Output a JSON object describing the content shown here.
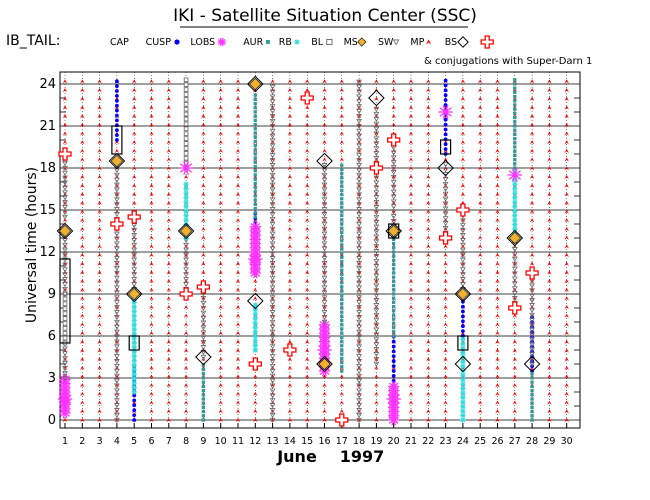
{
  "title": "IKI - Satellite Situation Center (SSC)",
  "satellite_label": "IB_TAIL:",
  "legend": [
    {
      "label": "CAP",
      "symbol": "",
      "color": "#000000"
    },
    {
      "label": "CUSP",
      "symbol": "dot",
      "color": "#0000ff"
    },
    {
      "label": "LOBS",
      "symbol": "star",
      "color": "#ff33ff"
    },
    {
      "label": "AUR",
      "symbol": "square-small",
      "color": "#339999"
    },
    {
      "label": "RB",
      "symbol": "asterisk",
      "color": "#33dddd"
    },
    {
      "label": "BL",
      "symbol": "square-open",
      "color": "#555555"
    },
    {
      "label": "MS",
      "symbol": "diamond-filled",
      "color": "#f0b030"
    },
    {
      "label": "SW",
      "symbol": "triangle-down",
      "color": "#666666"
    },
    {
      "label": "MP",
      "symbol": "arrow-up",
      "color": "#ff0000"
    },
    {
      "label": "BS",
      "symbol": "diamond-open",
      "color": "#000000"
    }
  ],
  "conjugation_note": "& conjugations with Super-Darn 1",
  "colors": {
    "cusp": "#0000ff",
    "lobs": "#ff33ff",
    "aur": "#339999",
    "rb": "#33dddd",
    "bl": "#666666",
    "ms": "#f0b030",
    "sw": "#666666",
    "mp": "#ff0000",
    "bs": "#000000",
    "conjugation": "#ff0000"
  },
  "chart_data": {
    "type": "scatter",
    "xlabel": "June",
    "year_label": "1997",
    "ylabel": "Universal time (hours)",
    "x_ticks": [
      1,
      2,
      3,
      4,
      5,
      6,
      7,
      8,
      9,
      10,
      11,
      12,
      13,
      14,
      15,
      16,
      17,
      18,
      19,
      20,
      21,
      22,
      23,
      24,
      25,
      26,
      27,
      28,
      29,
      30
    ],
    "y_ticks": [
      0,
      3,
      6,
      9,
      12,
      15,
      18,
      21,
      24
    ],
    "xlim": [
      1,
      30
    ],
    "ylim": [
      0,
      24
    ],
    "grid": true,
    "mp_days": [
      1,
      2,
      3,
      4,
      5,
      6,
      7,
      8,
      9,
      10,
      11,
      12,
      13,
      14,
      15,
      16,
      17,
      18,
      19,
      20,
      21,
      22,
      23,
      24,
      25,
      26,
      27,
      28,
      29,
      30
    ],
    "region_segments": [
      {
        "day": 1,
        "region": "LOBS",
        "from": 0.5,
        "to": 3
      },
      {
        "day": 1,
        "region": "SW",
        "from": 3,
        "to": 5.5
      },
      {
        "day": 1,
        "region": "BL",
        "from": 5.5,
        "to": 9
      },
      {
        "day": 1,
        "region": "SW",
        "from": 9,
        "to": 13.5
      },
      {
        "day": 1,
        "region": "SW",
        "from": 14.5,
        "to": 19
      },
      {
        "day": 4,
        "region": "CUSP",
        "from": 20,
        "to": 24.5
      },
      {
        "day": 4,
        "region": "SW",
        "from": 0,
        "to": 18.5
      },
      {
        "day": 5,
        "region": "CUSP",
        "from": 0,
        "to": 4
      },
      {
        "day": 5,
        "region": "RB",
        "from": 2,
        "to": 9
      },
      {
        "day": 5,
        "region": "SW",
        "from": 9,
        "to": 14.5
      },
      {
        "day": 8,
        "region": "SW",
        "from": 9,
        "to": 13
      },
      {
        "day": 8,
        "region": "RB",
        "from": 13,
        "to": 17
      },
      {
        "day": 8,
        "region": "BL",
        "from": 18,
        "to": 24.5
      },
      {
        "day": 9,
        "region": "AUR",
        "from": 0,
        "to": 4
      },
      {
        "day": 9,
        "region": "SW",
        "from": 4.5,
        "to": 9.5
      },
      {
        "day": 12,
        "region": "CUSP",
        "from": 13,
        "to": 15
      },
      {
        "day": 12,
        "region": "LOBS",
        "from": 10.5,
        "to": 14
      },
      {
        "day": 12,
        "region": "RB",
        "from": 5,
        "to": 8.5
      },
      {
        "day": 12,
        "region": "AUR",
        "from": 14.5,
        "to": 23.5
      },
      {
        "day": 13,
        "region": "SW",
        "from": 0,
        "to": 24
      },
      {
        "day": 16,
        "region": "LOBS",
        "from": 3.5,
        "to": 7
      },
      {
        "day": 16,
        "region": "SW",
        "from": 7,
        "to": 18.5
      },
      {
        "day": 17,
        "region": "AUR",
        "from": 3.5,
        "to": 18.5
      },
      {
        "day": 18,
        "region": "SW",
        "from": 0,
        "to": 24.5
      },
      {
        "day": 19,
        "region": "SW",
        "from": 4,
        "to": 22.5
      },
      {
        "day": 20,
        "region": "CUSP",
        "from": 0,
        "to": 6
      },
      {
        "day": 20,
        "region": "LOBS",
        "from": 0,
        "to": 2.5
      },
      {
        "day": 20,
        "region": "AUR",
        "from": 6,
        "to": 13.5
      },
      {
        "day": 20,
        "region": "SW",
        "from": 13.5,
        "to": 20
      },
      {
        "day": 23,
        "region": "CUSP",
        "from": 19,
        "to": 24.5
      },
      {
        "day": 23,
        "region": "SW",
        "from": 13,
        "to": 18.5
      },
      {
        "day": 24,
        "region": "CUSP",
        "from": 6,
        "to": 9
      },
      {
        "day": 24,
        "region": "RB",
        "from": 0,
        "to": 6
      },
      {
        "day": 24,
        "region": "SW",
        "from": 9,
        "to": 15
      },
      {
        "day": 27,
        "region": "SW",
        "from": 8,
        "to": 13
      },
      {
        "day": 27,
        "region": "RB",
        "from": 13,
        "to": 18
      },
      {
        "day": 27,
        "region": "AUR",
        "from": 18,
        "to": 24.5
      },
      {
        "day": 28,
        "region": "CUSP",
        "from": 3.5,
        "to": 7.5
      },
      {
        "day": 28,
        "region": "AUR",
        "from": 0,
        "to": 3.5
      },
      {
        "day": 28,
        "region": "SW",
        "from": 4,
        "to": 10
      }
    ],
    "bow_shock_points": [
      {
        "day": 1,
        "time": 13.5
      },
      {
        "day": 4,
        "time": 18.5
      },
      {
        "day": 5,
        "time": 9
      },
      {
        "day": 8,
        "time": 13.5
      },
      {
        "day": 9,
        "time": 4.5
      },
      {
        "day": 12,
        "time": 8.5
      },
      {
        "day": 12,
        "time": 24
      },
      {
        "day": 16,
        "time": 4
      },
      {
        "day": 16,
        "time": 18.5
      },
      {
        "day": 19,
        "time": 23
      },
      {
        "day": 20,
        "time": 13.5
      },
      {
        "day": 23,
        "time": 18
      },
      {
        "day": 24,
        "time": 9
      },
      {
        "day": 24,
        "time": 4
      },
      {
        "day": 27,
        "time": 13
      },
      {
        "day": 28,
        "time": 4
      }
    ],
    "boundary_layer_boxes": [
      {
        "day": 1,
        "from": 5.5,
        "to": 11.5
      },
      {
        "day": 4,
        "from": 19,
        "to": 21
      },
      {
        "day": 5,
        "from": 5,
        "to": 6
      },
      {
        "day": 20,
        "from": 13,
        "to": 14
      },
      {
        "day": 23,
        "from": 19,
        "to": 20
      },
      {
        "day": 24,
        "from": 5,
        "to": 6
      }
    ],
    "conjugations": [
      {
        "day": 1,
        "time": 19
      },
      {
        "day": 4,
        "time": 14
      },
      {
        "day": 5,
        "time": 14.5
      },
      {
        "day": 8,
        "time": 9
      },
      {
        "day": 9,
        "time": 9.5
      },
      {
        "day": 12,
        "time": 4
      },
      {
        "day": 14,
        "time": 5
      },
      {
        "day": 15,
        "time": 23
      },
      {
        "day": 17,
        "time": 0
      },
      {
        "day": 19,
        "time": 18
      },
      {
        "day": 20,
        "time": 20
      },
      {
        "day": 23,
        "time": 13
      },
      {
        "day": 24,
        "time": 15
      },
      {
        "day": 27,
        "time": 8
      },
      {
        "day": 28,
        "time": 10.5
      }
    ],
    "lobs_points": [
      {
        "day": 1,
        "time": 1.5
      },
      {
        "day": 8,
        "time": 18
      },
      {
        "day": 12,
        "time": 11.5
      },
      {
        "day": 16,
        "time": 5
      },
      {
        "day": 20,
        "time": 1.5
      },
      {
        "day": 23,
        "time": 22
      },
      {
        "day": 27,
        "time": 17.5
      }
    ],
    "ms_points": [
      {
        "day": 1,
        "time": 13.5
      },
      {
        "day": 4,
        "time": 18.5
      },
      {
        "day": 5,
        "time": 9
      },
      {
        "day": 8,
        "time": 13.5
      },
      {
        "day": 12,
        "time": 24
      },
      {
        "day": 16,
        "time": 4
      },
      {
        "day": 20,
        "time": 13.5
      },
      {
        "day": 24,
        "time": 9
      },
      {
        "day": 27,
        "time": 13
      }
    ]
  }
}
